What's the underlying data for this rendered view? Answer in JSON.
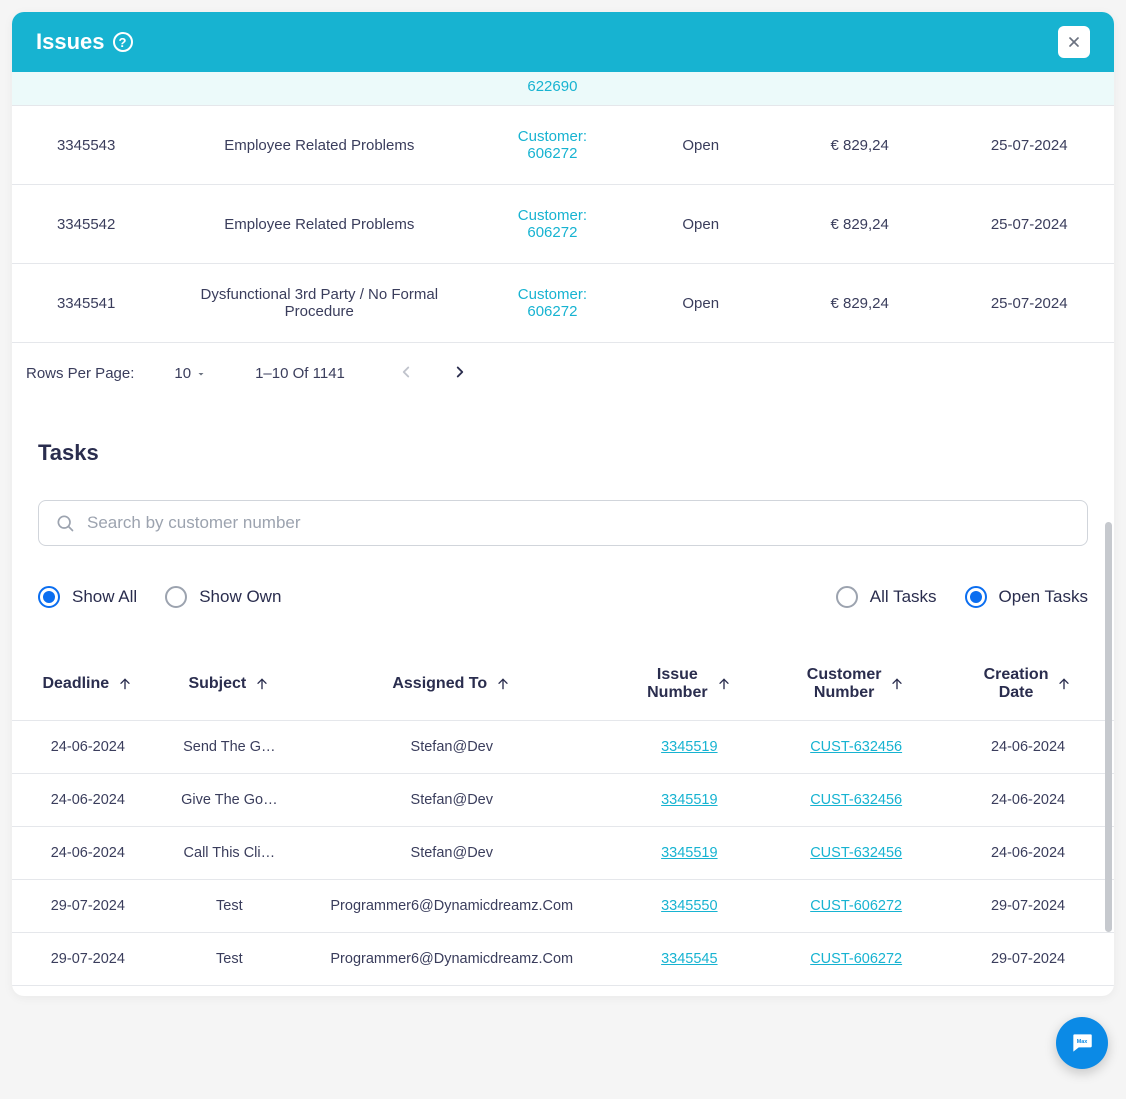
{
  "colors": {
    "header_bg": "#17b3d1",
    "link_teal": "#17b3d1",
    "text_primary": "#2a2d4e",
    "radio_selected": "#0b6ef0",
    "fab_bg": "#0b8ae6",
    "border": "#e5e7eb"
  },
  "header": {
    "title": "Issues"
  },
  "issues": {
    "rows": [
      {
        "id": "",
        "type": "",
        "customer_line1": "",
        "customer_line2": "622690",
        "status": "",
        "amount": "",
        "date": "",
        "partial": true
      },
      {
        "id": "3345543",
        "type": "Employee Related Problems",
        "customer_line1": "Customer:",
        "customer_line2": "606272",
        "status": "Open",
        "amount": "€ 829,24",
        "date": "25-07-2024"
      },
      {
        "id": "3345542",
        "type": "Employee Related Problems",
        "customer_line1": "Customer:",
        "customer_line2": "606272",
        "status": "Open",
        "amount": "€ 829,24",
        "date": "25-07-2024"
      },
      {
        "id": "3345541",
        "type": "Dysfunctional 3rd Party / No Formal Procedure",
        "customer_line1": "Customer:",
        "customer_line2": "606272",
        "status": "Open",
        "amount": "€ 829,24",
        "date": "25-07-2024"
      }
    ]
  },
  "pagination": {
    "rows_label": "Rows Per Page:",
    "rows_value": "10",
    "range": "1–10 Of 1141"
  },
  "tasks": {
    "title": "Tasks",
    "search_placeholder": "Search by customer number",
    "filters": {
      "left": [
        {
          "id": "show_all",
          "label": "Show All",
          "selected": true
        },
        {
          "id": "show_own",
          "label": "Show Own",
          "selected": false
        }
      ],
      "right": [
        {
          "id": "all_tasks",
          "label": "All Tasks",
          "selected": false
        },
        {
          "id": "open_tasks",
          "label": "Open Tasks",
          "selected": true
        }
      ]
    },
    "columns": [
      {
        "key": "deadline",
        "label": "Deadline",
        "sortable": true
      },
      {
        "key": "subject",
        "label": "Subject",
        "sortable": true
      },
      {
        "key": "assigned",
        "label": "Assigned To",
        "sortable": true
      },
      {
        "key": "issue",
        "label": "Issue Number",
        "sortable": true,
        "two_line": true
      },
      {
        "key": "customer",
        "label": "Customer Number",
        "sortable": true,
        "two_line": true
      },
      {
        "key": "created",
        "label": "Creation Date",
        "sortable": true,
        "two_line": true
      }
    ],
    "rows": [
      {
        "deadline": "24-06-2024",
        "subject": "Send The G…",
        "assigned": "Stefan@Dev",
        "issue": "3345519",
        "customer": "CUST-632456",
        "created": "24-06-2024"
      },
      {
        "deadline": "24-06-2024",
        "subject": "Give The Go…",
        "assigned": "Stefan@Dev",
        "issue": "3345519",
        "customer": "CUST-632456",
        "created": "24-06-2024"
      },
      {
        "deadline": "24-06-2024",
        "subject": "Call This Cli…",
        "assigned": "Stefan@Dev",
        "issue": "3345519",
        "customer": "CUST-632456",
        "created": "24-06-2024"
      },
      {
        "deadline": "29-07-2024",
        "subject": "Test",
        "assigned": "Programmer6@Dynamicdreamz.Com",
        "issue": "3345550",
        "customer": "CUST-606272",
        "created": "29-07-2024"
      },
      {
        "deadline": "29-07-2024",
        "subject": "Test",
        "assigned": "Programmer6@Dynamicdreamz.Com",
        "issue": "3345545",
        "customer": "CUST-606272",
        "created": "29-07-2024"
      }
    ]
  }
}
